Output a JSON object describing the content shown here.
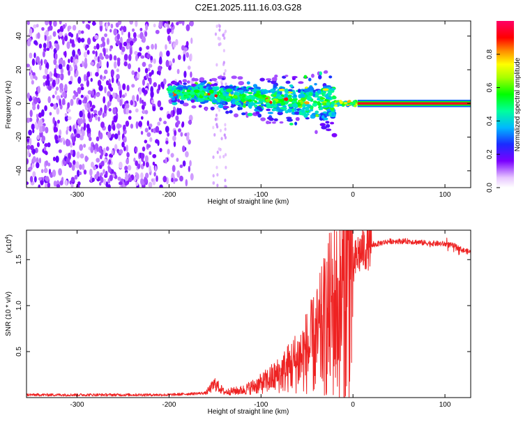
{
  "title": "C2E1.2025.111.16.03.G28",
  "chart_data": [
    {
      "type": "heatmap",
      "xlabel": "Height of straight line (km)",
      "ylabel": "Frequency (Hz)",
      "xlim": [
        -355,
        128
      ],
      "ylim": [
        -50,
        49
      ],
      "xticks": [
        -300,
        -200,
        -100,
        0,
        100
      ],
      "yticks": [
        -40,
        -20,
        0,
        20,
        40
      ],
      "colorbar": {
        "label": "Normalized spectral amplitude",
        "range": [
          0,
          1
        ],
        "ticks": [
          "0.0",
          "0.2",
          "0.4",
          "0.6",
          "0.8"
        ]
      },
      "regions": [
        {
          "x": [
            -355,
            -175
          ],
          "freq": [
            -50,
            49
          ],
          "amplitude": "low, scattered noise"
        },
        {
          "x": [
            -150,
            -140
          ],
          "freq": [
            -50,
            49
          ],
          "amplitude": "very low, sparse"
        },
        {
          "x": [
            -200,
            -20
          ],
          "freq_center_start": 7,
          "freq_center_end": 0,
          "amplitude": "medium to high"
        },
        {
          "x": [
            5,
            128
          ],
          "freq_center": 0,
          "amplitude": "1.0 (saturated line)"
        }
      ]
    },
    {
      "type": "line",
      "xlabel": "Height of straight line (km)",
      "ylabel": "SNR (10 * v/v)",
      "scale_note": "(x10",
      "scale_exp": "4",
      "xlim": [
        -355,
        128
      ],
      "ylim": [
        0,
        1.82
      ],
      "xticks": [
        -300,
        -200,
        -100,
        0,
        100
      ],
      "yticks": [
        "0.5",
        "1.0",
        "1.5"
      ],
      "ytick_values": [
        0.5,
        1.0,
        1.5
      ],
      "color": "#ee2222",
      "series": [
        {
          "x": [
            -355,
            -300,
            -250,
            -200,
            -160,
            -150,
            -140,
            -120,
            -100,
            -80,
            -60,
            -40,
            -30,
            -20,
            -15,
            -10,
            -5,
            0,
            5,
            10,
            20,
            30,
            40,
            60,
            80,
            100,
            110,
            120,
            128
          ],
          "y": [
            0.03,
            0.03,
            0.03,
            0.03,
            0.05,
            0.15,
            0.06,
            0.08,
            0.15,
            0.25,
            0.4,
            0.6,
            0.8,
            1.0,
            0.9,
            1.2,
            1.3,
            1.4,
            1.55,
            1.6,
            1.65,
            1.68,
            1.7,
            1.7,
            1.68,
            1.67,
            1.65,
            1.6,
            1.58
          ]
        }
      ]
    }
  ]
}
